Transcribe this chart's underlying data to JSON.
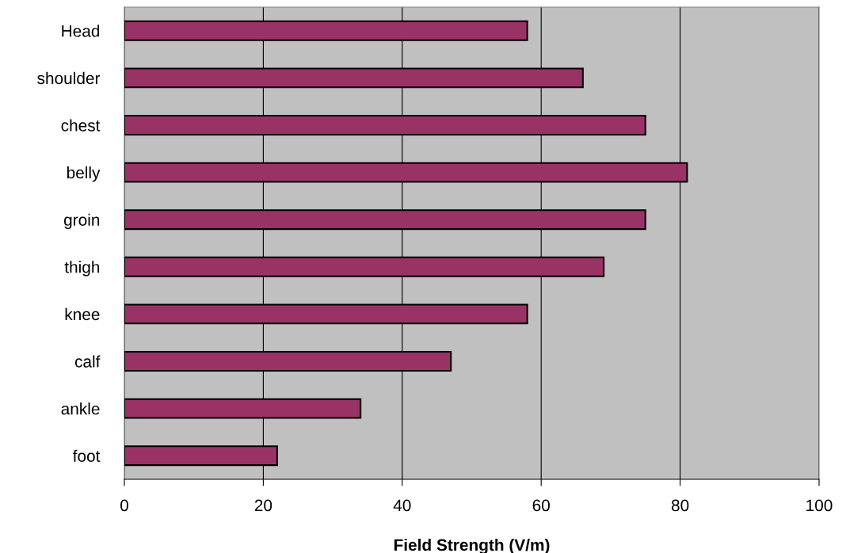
{
  "chart_data": {
    "type": "bar",
    "orientation": "horizontal",
    "xlabel": "Field Strength (V/m)",
    "categories": [
      "Head",
      "shoulder",
      "chest",
      "belly",
      "groin",
      "thigh",
      "knee",
      "calf",
      "ankle",
      "foot"
    ],
    "values": [
      58,
      66,
      75,
      81,
      75,
      69,
      58,
      47,
      34,
      22
    ],
    "color": "#993366",
    "xlim": [
      0,
      100
    ],
    "xticks": [
      0,
      20,
      40,
      60,
      80,
      100
    ],
    "grid": "x",
    "legend": false
  }
}
